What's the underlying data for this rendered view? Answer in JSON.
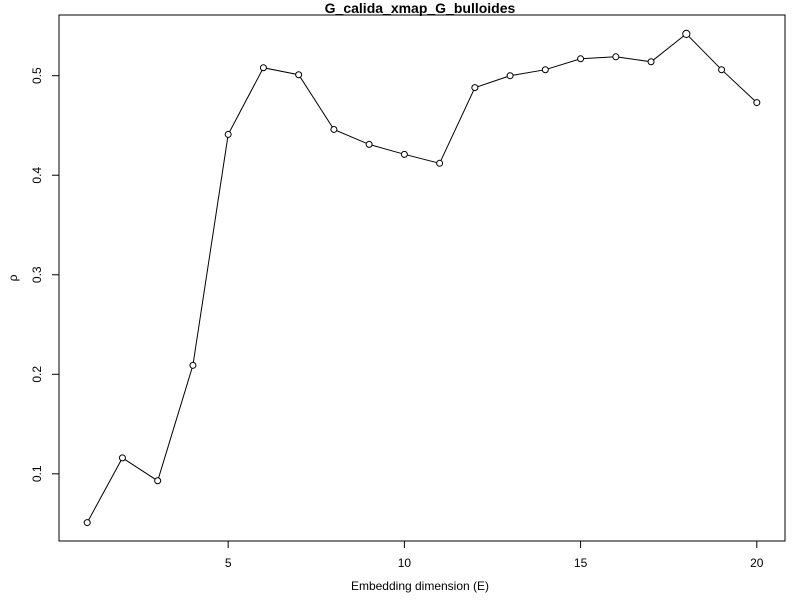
{
  "chart_data": {
    "type": "line",
    "title": "G_calida_xmap_G_bulloides",
    "xlabel": "Embedding dimension (E)",
    "ylabel": "ρ",
    "xlim": [
      0.2,
      20.8
    ],
    "ylim": [
      0.0325,
      0.561
    ],
    "xticks": [
      5,
      10,
      15,
      20
    ],
    "yticks": [
      0.1,
      0.2,
      0.3,
      0.4,
      0.5
    ],
    "grid": false,
    "x": [
      1,
      2,
      3,
      4,
      5,
      6,
      7,
      8,
      9,
      10,
      11,
      12,
      13,
      14,
      15,
      16,
      17,
      18,
      19,
      20
    ],
    "y": [
      0.051,
      0.116,
      0.093,
      0.209,
      0.441,
      0.508,
      0.501,
      0.446,
      0.431,
      0.421,
      0.412,
      0.488,
      0.5,
      0.506,
      0.517,
      0.519,
      0.514,
      0.542,
      0.506,
      0.473
    ],
    "highlight_x": 18,
    "highlight_color": "#ee1111",
    "point_color": "#ffffff",
    "line_color": "#000000"
  }
}
